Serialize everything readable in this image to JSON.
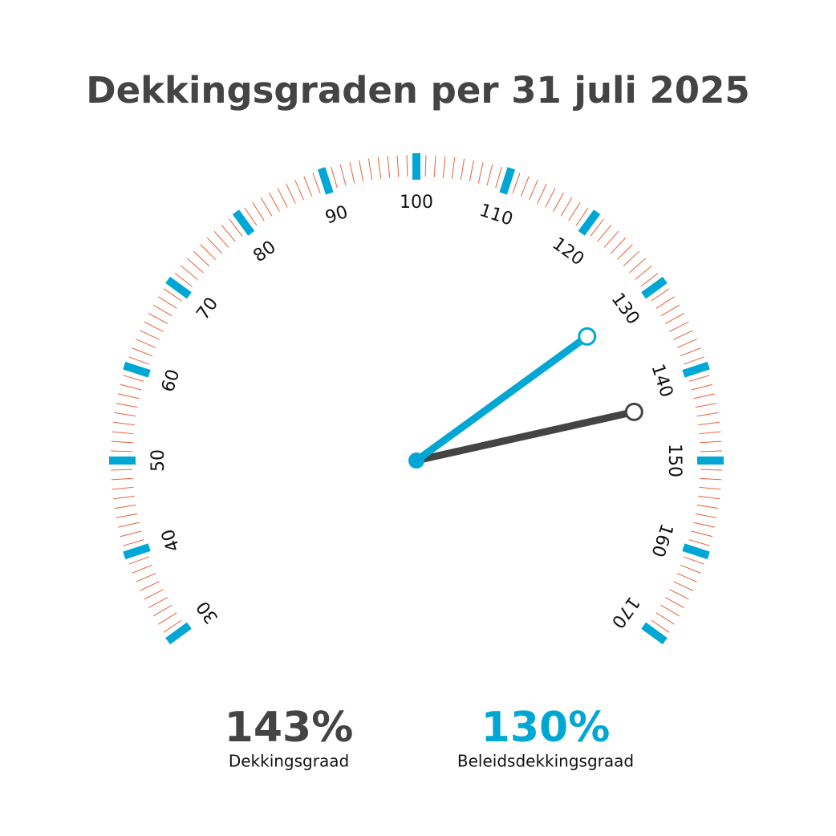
{
  "chart_data": {
    "type": "gauge",
    "title": "Dekkingsgraden per 31 juli 2025",
    "ylim": [
      30,
      170
    ],
    "yticks": [
      30,
      40,
      50,
      60,
      70,
      80,
      90,
      100,
      110,
      120,
      130,
      140,
      150,
      160,
      170
    ],
    "minor_tick_step": 1,
    "tick_color": "#00a7d4",
    "minor_tick_color": "#e8603c",
    "series": [
      {
        "name": "Dekkingsgraad",
        "color": "#444444",
        "values": [
          143
        ],
        "value_labels": [
          "143%"
        ]
      },
      {
        "name": "Beleidsdekkingsgraad",
        "color": "#00a7d4",
        "values": [
          130
        ],
        "value_labels": [
          "130%"
        ]
      }
    ]
  }
}
